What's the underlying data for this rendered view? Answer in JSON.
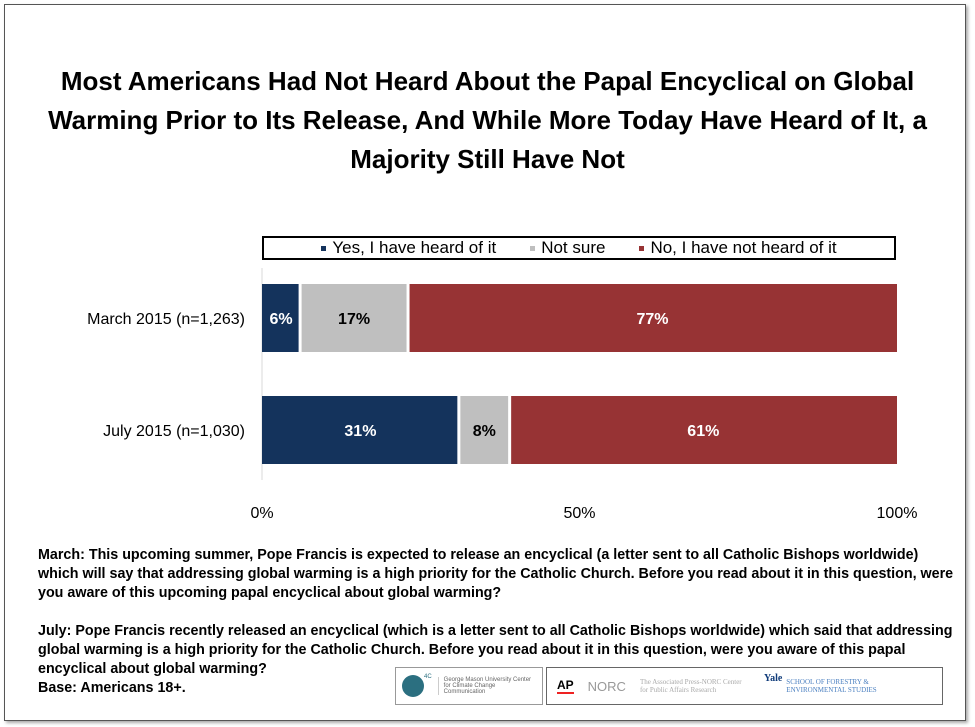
{
  "chart_data": {
    "type": "bar",
    "orientation": "horizontal",
    "stacked": true,
    "title": "Most Americans Had Not Heard About the Papal Encyclical on Global Warming Prior to Its Release, And While More Today Have Heard of It, a Majority Still Have Not",
    "categories": [
      "March 2015 (n=1,263)",
      "July 2015 (n=1,030)"
    ],
    "series": [
      {
        "name": "Yes, I have heard of it",
        "color": "#14335c",
        "values": [
          6,
          31
        ],
        "labels": [
          "6%",
          "31%"
        ],
        "label_color": "#ffffff"
      },
      {
        "name": "Not sure",
        "color": "#bfbfbf",
        "values": [
          17,
          8
        ],
        "labels": [
          "17%",
          "8%"
        ],
        "label_color": "#000000"
      },
      {
        "name": "No, I have not heard of it",
        "color": "#973334",
        "values": [
          77,
          61
        ],
        "labels": [
          "77%",
          "61%"
        ],
        "label_color": "#ffffff"
      }
    ],
    "xlim": [
      0,
      100
    ],
    "xticks": [
      "0%",
      "50%",
      "100%"
    ],
    "legend_position": "top",
    "grid": false
  },
  "notes": {
    "march": "March: This upcoming summer, Pope Francis is expected to release an encyclical (a letter sent to all Catholic Bishops worldwide) which will say that addressing global warming is a high priority for the Catholic Church. Before you read about it in this question, were you aware of this upcoming papal encyclical about global warming?",
    "july": "July: Pope Francis recently released an encyclical (which is a letter sent to all Catholic Bishops worldwide) which said that addressing global warming is a high priority for the Catholic Church. Before you read about it in this question, were you aware of this papal encyclical about global warming?",
    "base": "Base: Americans 18+."
  },
  "logos": {
    "gmu_mark": "4C",
    "gmu": "George Mason University Center for Climate Change Communication",
    "ap": "AP",
    "norc": "NORC",
    "ap_norc": "The Associated Press-NORC Center for Public Affairs Research",
    "yale": "Yale",
    "yale_school": "SCHOOL OF FORESTRY & ENVIRONMENTAL STUDIES"
  }
}
